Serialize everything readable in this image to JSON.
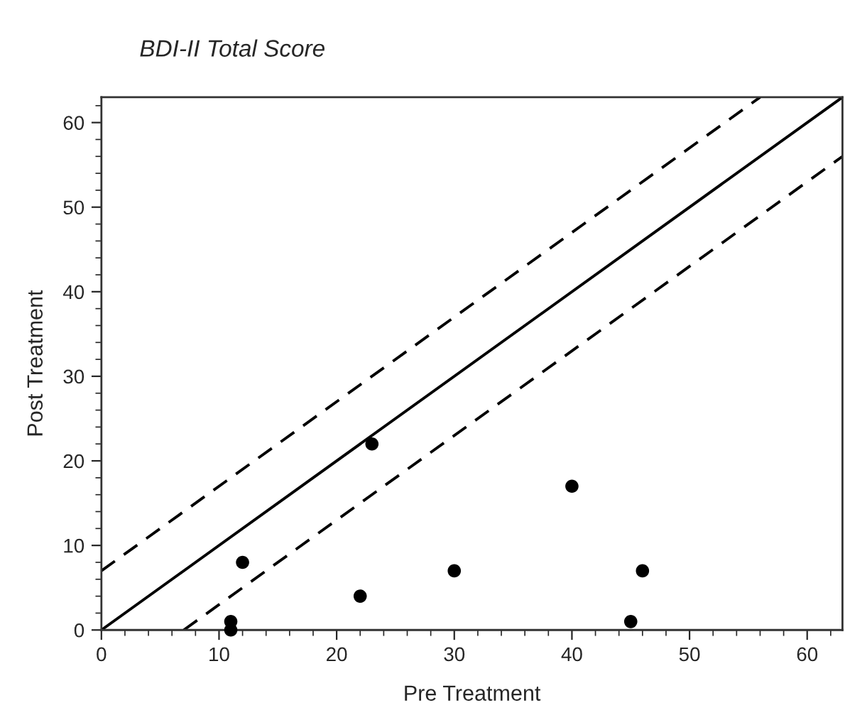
{
  "chart_data": {
    "type": "scatter",
    "title": "BDI-II Total Score",
    "xlabel": "Pre Treatment",
    "ylabel": "Post Treatment",
    "xlim": [
      0,
      63
    ],
    "ylim": [
      0,
      63
    ],
    "xticks": [
      0,
      10,
      20,
      30,
      40,
      50,
      60
    ],
    "yticks": [
      0,
      10,
      20,
      30,
      40,
      50,
      60
    ],
    "grid": false,
    "legend": false,
    "series": [
      {
        "color": "#000000",
        "marker": "circle",
        "x": [
          11,
          11,
          12,
          22,
          23,
          30,
          40,
          45,
          46
        ],
        "values": [
          0,
          1,
          8,
          4,
          22,
          7,
          17,
          1,
          7
        ]
      },
      {
        "type": "line",
        "color": "#000000",
        "line_style": "solid",
        "marker": "none",
        "x": [
          0,
          63
        ],
        "values": [
          0,
          63
        ]
      },
      {
        "type": "line",
        "color": "#000000",
        "line_style": "dashed",
        "marker": "none",
        "x": [
          0,
          56
        ],
        "values": [
          7,
          63
        ]
      },
      {
        "type": "line",
        "color": "#000000",
        "line_style": "dashed",
        "marker": "none",
        "x": [
          7,
          63
        ],
        "values": [
          0,
          56
        ]
      }
    ]
  }
}
